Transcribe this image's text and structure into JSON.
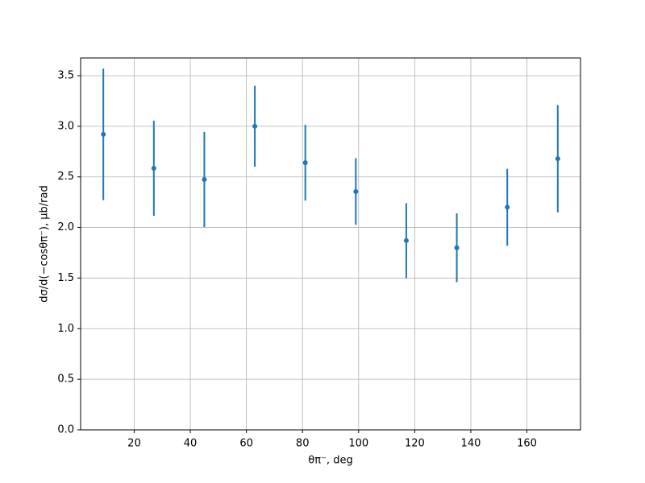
{
  "chart_data": {
    "type": "errorbar",
    "x_label": "θπ⁻, deg",
    "y_label": "dσ/d(−cosθπ⁻), μb/rad",
    "x": [
      9,
      27,
      45,
      63,
      81,
      99,
      117,
      135,
      153,
      171
    ],
    "values": [
      2.92,
      2.585,
      2.474,
      3.0,
      2.64,
      2.355,
      1.87,
      1.8,
      2.2,
      2.68
    ],
    "errors": [
      0.65,
      0.47,
      0.47,
      0.4,
      0.375,
      0.33,
      0.37,
      0.34,
      0.38,
      0.53
    ],
    "color": "#1f77b4",
    "xlim": [
      0.9,
      179.1
    ],
    "ylim": [
      0,
      3.675
    ],
    "xticks": [
      20,
      40,
      60,
      80,
      100,
      120,
      140,
      160
    ],
    "yticks": [
      {
        "value": 0,
        "label": "0.0"
      },
      0.5,
      {
        "value": 1,
        "label": "1.0"
      },
      1.5,
      {
        "value": 2,
        "label": "2.0"
      },
      2.5,
      {
        "value": 3,
        "label": "3.0"
      },
      3.5
    ],
    "grid": true
  }
}
